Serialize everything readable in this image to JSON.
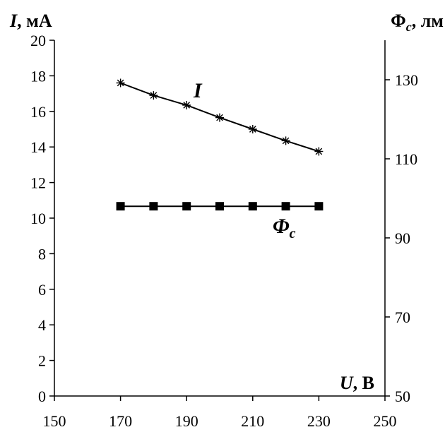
{
  "chart_data": {
    "type": "line",
    "x": [
      170,
      180,
      190,
      200,
      210,
      220,
      230
    ],
    "xlim": [
      150,
      250
    ],
    "xticks": [
      "150",
      "170",
      "190",
      "210",
      "230",
      "250"
    ],
    "ylim_left": [
      0,
      20
    ],
    "yticks_left": [
      "0",
      "2",
      "4",
      "6",
      "8",
      "10",
      "12",
      "14",
      "16",
      "18",
      "20"
    ],
    "ylim_right": [
      50,
      140
    ],
    "yticks_right": [
      "50",
      "70",
      "90",
      "110",
      "130"
    ],
    "ylabel_left": {
      "symbol": "I",
      "unit": ", мА"
    },
    "ylabel_right": {
      "symbol": "Φ",
      "sub": "c",
      "unit": ", лм"
    },
    "xlabel": {
      "symbol": "U",
      "unit": ", В"
    },
    "grid": false,
    "series": [
      {
        "name": "I",
        "axis": "left",
        "marker": "asterisk",
        "values": [
          17.6,
          16.9,
          16.35,
          15.65,
          15.0,
          14.35,
          13.75
        ]
      },
      {
        "name": "Φ",
        "name_sub": "c",
        "axis": "right",
        "marker": "square",
        "values": [
          98,
          98,
          98,
          98,
          98,
          98,
          98
        ]
      }
    ]
  }
}
